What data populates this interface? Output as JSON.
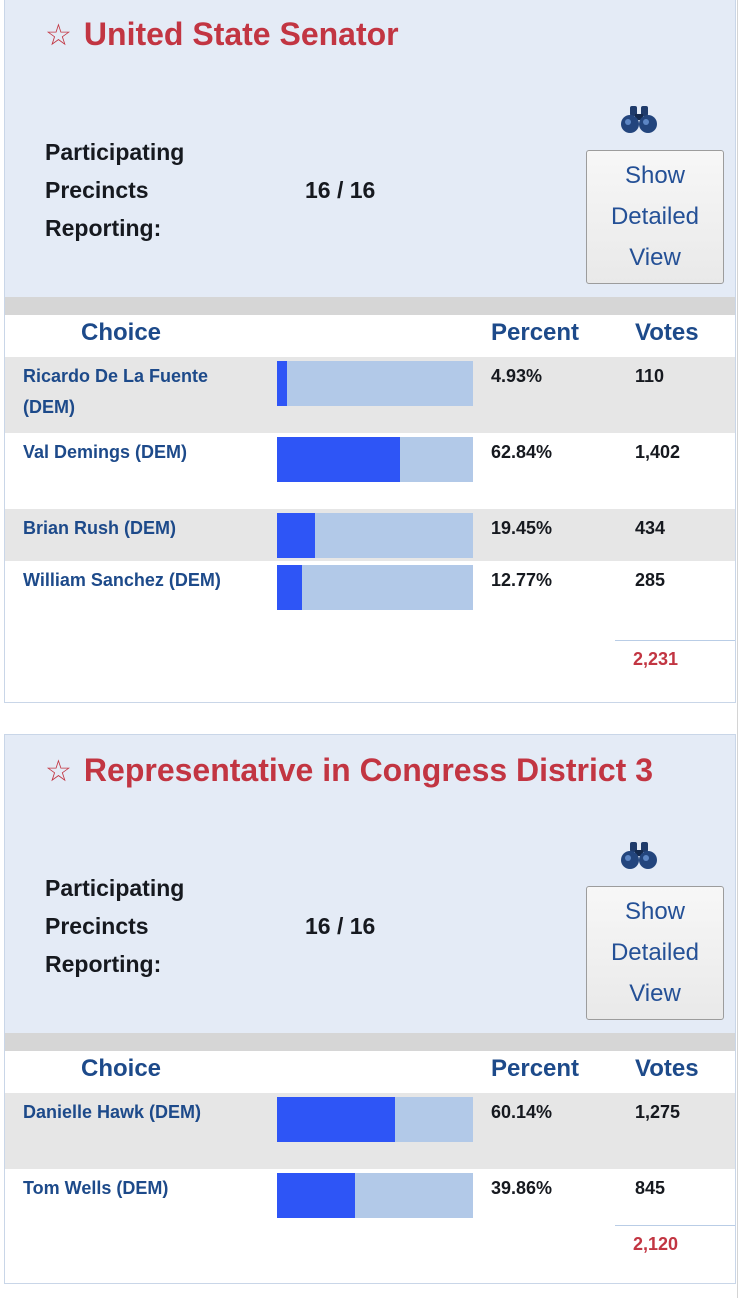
{
  "races": [
    {
      "title": "United State Senator",
      "star_glyph": "☆",
      "precincts_label_lines": [
        "Participating",
        "Precincts",
        "Reporting:"
      ],
      "precincts_value": "16 / 16",
      "detail_button_lines": [
        "Show",
        "Detailed",
        "View"
      ],
      "columns": {
        "choice": "Choice",
        "percent": "Percent",
        "votes": "Votes"
      },
      "candidates": [
        {
          "name": "Ricardo De La Fuente (DEM)",
          "percent_label": "4.93%",
          "percent": 4.93,
          "votes": "110"
        },
        {
          "name": "Val Demings (DEM)",
          "percent_label": "62.84%",
          "percent": 62.84,
          "votes": "1,402"
        },
        {
          "name": "Brian Rush (DEM)",
          "percent_label": "19.45%",
          "percent": 19.45,
          "votes": "434"
        },
        {
          "name": "William Sanchez (DEM)",
          "percent_label": "12.77%",
          "percent": 12.77,
          "votes": "285"
        }
      ],
      "total_votes": "2,231"
    },
    {
      "title": "Representative in Congress District 3",
      "star_glyph": "☆",
      "precincts_label_lines": [
        "Participating",
        "Precincts",
        "Reporting:"
      ],
      "precincts_value": "16 / 16",
      "detail_button_lines": [
        "Show",
        "Detailed",
        "View"
      ],
      "columns": {
        "choice": "Choice",
        "percent": "Percent",
        "votes": "Votes"
      },
      "candidates": [
        {
          "name": "Danielle Hawk (DEM)",
          "percent_label": "60.14%",
          "percent": 60.14,
          "votes": "1,275"
        },
        {
          "name": "Tom Wells (DEM)",
          "percent_label": "39.86%",
          "percent": 39.86,
          "votes": "845"
        }
      ],
      "total_votes": "2,120"
    }
  ],
  "icons": {
    "favorite": "star-outline-icon",
    "detail": "binoculars-icon"
  },
  "colors": {
    "title_red": "#c23542",
    "header_bg": "#e4ebf6",
    "label_blue": "#1d4a8a",
    "bar_fill": "#2e55f6",
    "bar_track": "#b2c9e8",
    "row_shade": "#e6e6e6"
  }
}
